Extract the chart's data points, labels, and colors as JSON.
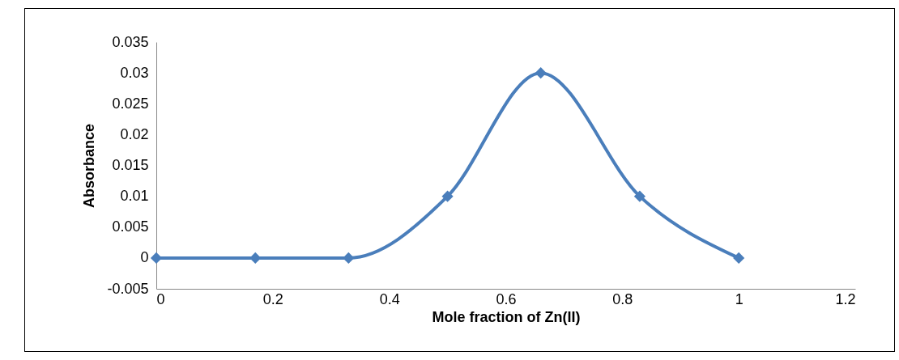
{
  "chart_data": {
    "type": "line",
    "xlabel": "Mole fraction of Zn(II)",
    "ylabel": "Absorbance",
    "x": [
      0,
      0.17,
      0.33,
      0.5,
      0.66,
      0.83,
      1
    ],
    "series": [
      {
        "color": "#4a7ebb",
        "values": [
          0,
          0,
          0,
          0.01,
          0.03,
          0.01,
          0
        ]
      }
    ],
    "xlim": [
      0,
      1.2
    ],
    "xticks": [
      0,
      0.2,
      0.4,
      0.6,
      0.8,
      1,
      1.2
    ],
    "ylim": [
      -0.005,
      0.035
    ],
    "yticks": [
      -0.005,
      0,
      0.005,
      0.01,
      0.015,
      0.02,
      0.025,
      0.03,
      0.035
    ],
    "grid": false,
    "legend": false,
    "marker": "diamond",
    "line_style": "solid"
  }
}
